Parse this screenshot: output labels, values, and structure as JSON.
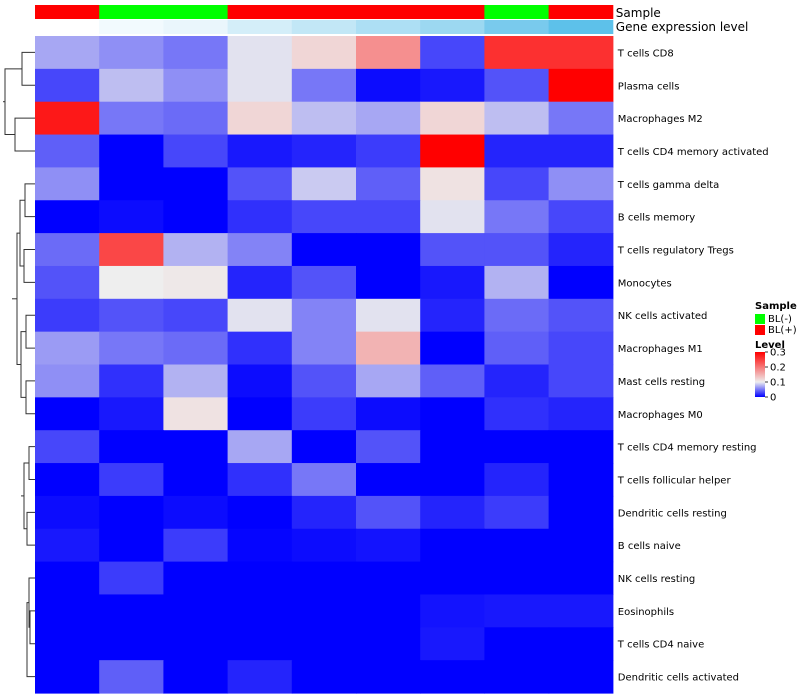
{
  "chart_data": {
    "type": "heatmap",
    "title": "",
    "annotation_tracks": {
      "sample_label": "Sample",
      "expression_label": "Gene expression level",
      "sample_values": [
        "BL(+)",
        "BL(-)",
        "BL(-)",
        "BL(+)",
        "BL(+)",
        "BL(+)",
        "BL(+)",
        "BL(-)",
        "BL(+)"
      ],
      "expression_colors": [
        "#ffffff",
        "#f2fafe",
        "#eaf6fc",
        "#d4eef9",
        "#c2e7f6",
        "#addff4",
        "#9cd8f1",
        "#79caed",
        "#5dc1ea"
      ]
    },
    "rows": [
      "T cells CD8",
      "Plasma cells",
      "Macrophages M2",
      "T cells CD4 memory activated",
      "T cells gamma delta",
      "B cells memory",
      "T cells regulatory  Tregs",
      "Monocytes",
      "NK cells activated",
      "Macrophages M1",
      "Mast cells resting",
      "Macrophages M0",
      "T cells CD4 memory resting",
      "T cells follicular helper",
      "Dendritic cells resting",
      "B cells naive",
      "NK cells resting",
      "Eosinophils",
      "T cells CD4 naive",
      "Dendritic cells activated"
    ],
    "columns": 9,
    "values": [
      [
        0.07,
        0.06,
        0.05,
        0.095,
        0.12,
        0.18,
        0.03,
        0.26,
        0.26
      ],
      [
        0.03,
        0.08,
        0.06,
        0.095,
        0.05,
        0.005,
        0.01,
        0.035,
        0.3
      ],
      [
        0.28,
        0.05,
        0.045,
        0.12,
        0.08,
        0.07,
        0.12,
        0.08,
        0.05
      ],
      [
        0.04,
        0.0,
        0.03,
        0.01,
        0.015,
        0.025,
        0.3,
        0.015,
        0.015
      ],
      [
        0.06,
        0.0,
        0.0,
        0.035,
        0.085,
        0.04,
        0.11,
        0.03,
        0.06
      ],
      [
        0.0,
        0.005,
        0.0,
        0.02,
        0.03,
        0.03,
        0.095,
        0.05,
        0.03
      ],
      [
        0.045,
        0.24,
        0.075,
        0.055,
        0.0,
        0.0,
        0.035,
        0.035,
        0.015
      ],
      [
        0.035,
        0.1,
        0.105,
        0.015,
        0.035,
        0.0,
        0.01,
        0.075,
        0.0
      ],
      [
        0.025,
        0.035,
        0.03,
        0.095,
        0.055,
        0.095,
        0.015,
        0.045,
        0.035
      ],
      [
        0.065,
        0.05,
        0.045,
        0.02,
        0.055,
        0.15,
        0.0,
        0.04,
        0.03
      ],
      [
        0.06,
        0.02,
        0.075,
        0.005,
        0.035,
        0.07,
        0.04,
        0.015,
        0.03
      ],
      [
        0.0,
        0.01,
        0.11,
        0.0,
        0.025,
        0.005,
        0.0,
        0.02,
        0.015
      ],
      [
        0.03,
        0.0,
        0.0,
        0.07,
        0.0,
        0.035,
        0.0,
        0.0,
        0.0
      ],
      [
        0.0,
        0.025,
        0.0,
        0.02,
        0.05,
        0.0,
        0.0,
        0.015,
        0.0
      ],
      [
        0.005,
        0.0,
        0.005,
        0.0,
        0.015,
        0.035,
        0.015,
        0.025,
        0.0
      ],
      [
        0.01,
        0.0,
        0.025,
        0.002,
        0.005,
        0.008,
        0.0,
        0.0,
        0.0
      ],
      [
        0.0,
        0.025,
        0.0,
        0.0,
        0.0,
        0.0,
        0.0,
        0.0,
        0.0
      ],
      [
        0.0,
        0.0,
        0.0,
        0.0,
        0.0,
        0.0,
        0.008,
        0.01,
        0.01
      ],
      [
        0.0,
        0.0,
        0.0,
        0.0,
        0.0,
        0.0,
        0.01,
        0.0,
        0.0
      ],
      [
        0.0,
        0.04,
        0.0,
        0.015,
        0.0,
        0.0,
        0.0,
        0.0,
        0.0
      ]
    ],
    "color_scale": {
      "low": "#0000ff",
      "mid": "#eeeeee",
      "high": "#ff0000",
      "min": 0,
      "mid_value": 0.1,
      "max": 0.3
    },
    "legend": {
      "position": "right",
      "sample_title": "Sample",
      "sample_items": [
        {
          "label": "BL(-)",
          "color": "#00ff00"
        },
        {
          "label": "BL(+)",
          "color": "#ff0000"
        }
      ],
      "level_title": "Level",
      "level_ticks": [
        "0.3",
        "0.2",
        "0.1",
        "0"
      ],
      "level_tick_values": [
        0.3,
        0.2,
        0.1,
        0
      ]
    },
    "dendrogram": "row clustering tree shown on left"
  }
}
